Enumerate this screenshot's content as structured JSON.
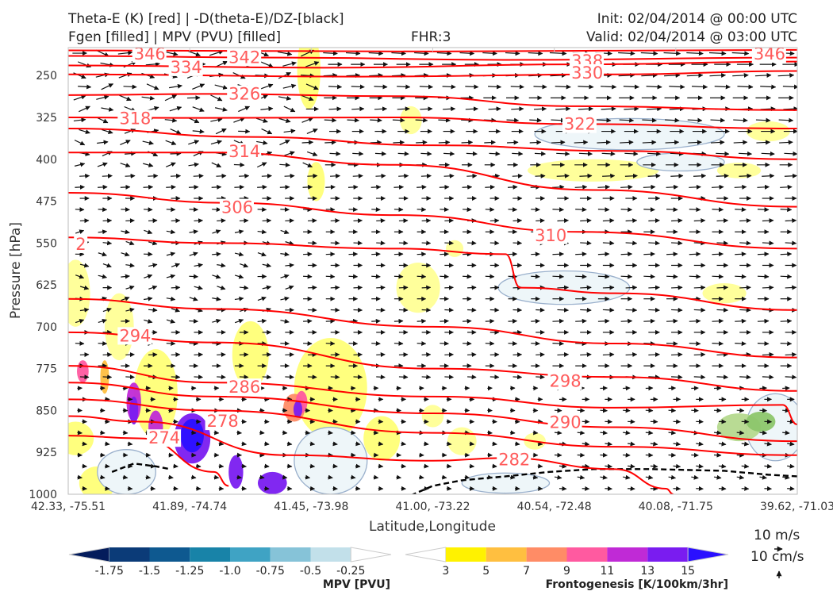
{
  "header": {
    "title_line1": "Theta-E (K) [red] | -D(theta-E)/DZ-[black]",
    "title_line2": "Fgen [filled] | MPV (PVU) [filled]",
    "fhr": "FHR:3",
    "init": "Init: 02/04/2014 @ 00:00 UTC",
    "valid": "Valid: 02/04/2014 @ 03:00 UTC"
  },
  "chart_data": {
    "type": "cross-section",
    "xlabel": "Latitude,Longitude",
    "ylabel": "Pressure [hPa]",
    "x_ticks": [
      "42.33, -75.51",
      "41.89, -74.74",
      "41.45, -73.98",
      "41.00, -73.22",
      "40.54, -72.48",
      "40.08, -71.75",
      "39.62, -71.03"
    ],
    "y_ticks": [
      "250",
      "325",
      "400",
      "475",
      "550",
      "625",
      "700",
      "775",
      "850",
      "925",
      "1000"
    ],
    "ylim": [
      1000,
      200
    ],
    "theta_e_labels": [
      {
        "value": "346",
        "x": 0.09,
        "p": 210
      },
      {
        "value": "342",
        "x": 0.22,
        "p": 216
      },
      {
        "value": "338",
        "x": 0.69,
        "p": 223
      },
      {
        "value": "346",
        "x": 0.94,
        "p": 210
      },
      {
        "value": "334",
        "x": 0.14,
        "p": 234
      },
      {
        "value": "330",
        "x": 0.69,
        "p": 244
      },
      {
        "value": "326",
        "x": 0.22,
        "p": 282
      },
      {
        "value": "318",
        "x": 0.07,
        "p": 326
      },
      {
        "value": "322",
        "x": 0.68,
        "p": 336
      },
      {
        "value": "314",
        "x": 0.22,
        "p": 385
      },
      {
        "value": "306",
        "x": 0.21,
        "p": 485
      },
      {
        "value": "310",
        "x": 0.64,
        "p": 535
      },
      {
        "value": "2",
        "x": 0.01,
        "p": 551
      },
      {
        "value": "294",
        "x": 0.07,
        "p": 715
      },
      {
        "value": "298",
        "x": 0.66,
        "p": 796
      },
      {
        "value": "286",
        "x": 0.22,
        "p": 807
      },
      {
        "value": "278",
        "x": 0.19,
        "p": 868
      },
      {
        "value": "290",
        "x": 0.66,
        "p": 870
      },
      {
        "value": "274",
        "x": 0.11,
        "p": 898
      },
      {
        "value": "282",
        "x": 0.59,
        "p": 937
      }
    ],
    "mpv_colorbar": {
      "title": "MPV [PVU]",
      "ticks": [
        "-1.75",
        "-1.5",
        "-1.25",
        "-1.0",
        "-0.75",
        "-0.5",
        "-0.25"
      ],
      "colors": [
        "#041c5c",
        "#0b3b78",
        "#0e5990",
        "#1883a8",
        "#3fa3c4",
        "#86c3d8",
        "#c2e0ea",
        "#ffffff"
      ]
    },
    "fgen_colorbar": {
      "title": "Frontogenesis [K/100km/3hr]",
      "ticks": [
        "3",
        "5",
        "7",
        "9",
        "11",
        "13",
        "15"
      ],
      "colors": [
        "#ffffff",
        "#fff200",
        "#ffbf40",
        "#ff8c66",
        "#ff5aa0",
        "#c02ad6",
        "#7a1cf0",
        "#2a10ff"
      ]
    },
    "quiver_key": {
      "horizontal": "10 m/s",
      "vertical": "10 cm/s"
    },
    "colors": {
      "theta_e": "#ff0000",
      "label": "#ff5a5a",
      "vectors": "#111111",
      "mpv_outline": "#9ab0cc"
    }
  }
}
